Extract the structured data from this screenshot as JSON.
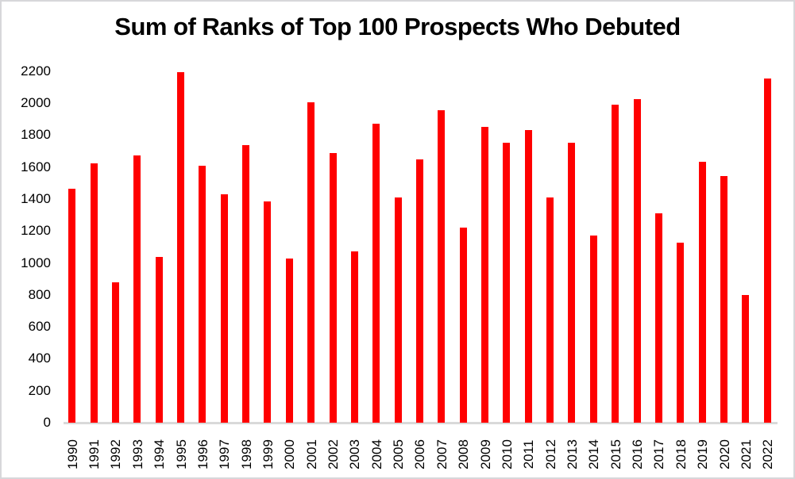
{
  "window": {
    "background_color": "#FFFFFF",
    "border_color": "#D7D7DA"
  },
  "chart_data": {
    "type": "bar",
    "title": "Sum of Ranks of Top 100 Prospects Who Debuted",
    "xlabel": "",
    "ylabel": "",
    "categories": [
      "1990",
      "1991",
      "1992",
      "1993",
      "1994",
      "1995",
      "1996",
      "1997",
      "1998",
      "1999",
      "2000",
      "2001",
      "2002",
      "2003",
      "2004",
      "2005",
      "2006",
      "2007",
      "2008",
      "2009",
      "2010",
      "2011",
      "2012",
      "2013",
      "2014",
      "2015",
      "2016",
      "2017",
      "2018",
      "2019",
      "2020",
      "2021",
      "2022"
    ],
    "values": [
      1465,
      1625,
      880,
      1670,
      1035,
      2195,
      1610,
      1430,
      1735,
      1385,
      1025,
      2005,
      1685,
      1070,
      1870,
      1410,
      1650,
      1955,
      1220,
      1850,
      1750,
      1830,
      1410,
      1750,
      1170,
      1990,
      2025,
      1310,
      1125,
      1635,
      1545,
      800,
      2155
    ],
    "ylim": [
      0,
      2200
    ],
    "yticks": [
      0,
      200,
      400,
      600,
      800,
      1000,
      1200,
      1400,
      1600,
      1800,
      2000,
      2200
    ],
    "bar_color": "#FF0000",
    "axis_line_color": "#D9D9D9",
    "text_color": "#000000",
    "grid": false,
    "legend": false,
    "x_tick_rotation": 90
  }
}
